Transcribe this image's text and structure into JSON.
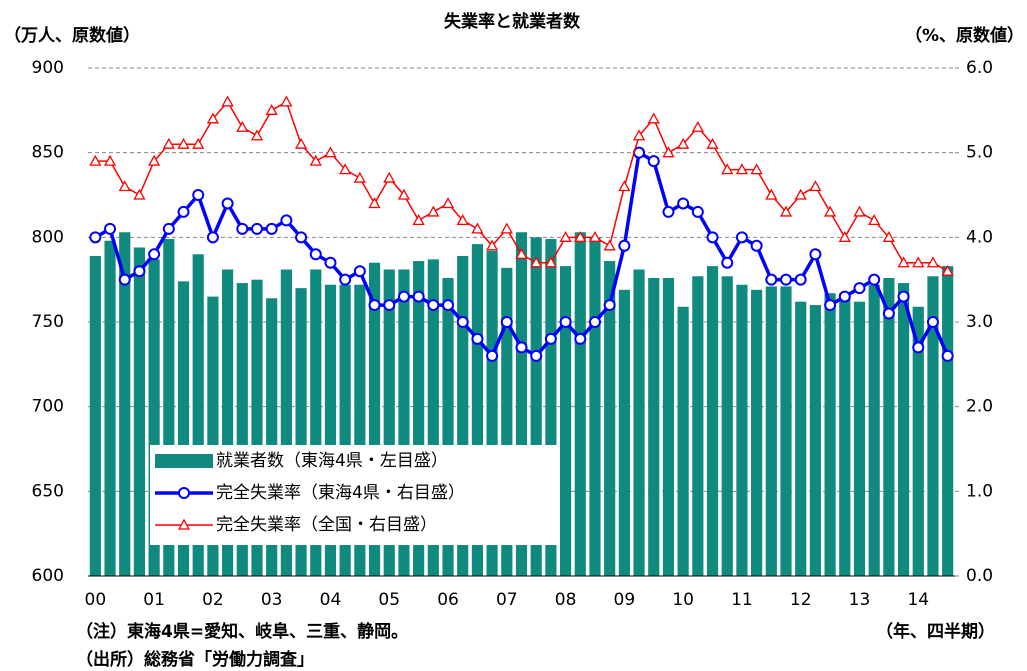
{
  "chart_data": {
    "type": "combo",
    "title": "失業率と就業者数",
    "y_label": "（万人、原数値）",
    "y2_label": "（%、原数値）",
    "x_label": "（年、四半期）",
    "notes": [
      "（注）東海4県=愛知、岐阜、三重、静岡。",
      "（出所）総務省「労働力調査」"
    ],
    "categories": [
      "00",
      null,
      null,
      null,
      "01",
      null,
      null,
      null,
      "02",
      null,
      null,
      null,
      "03",
      null,
      null,
      null,
      "04",
      null,
      null,
      null,
      "05",
      null,
      null,
      null,
      "06",
      null,
      null,
      null,
      "07",
      null,
      null,
      null,
      "08",
      null,
      null,
      null,
      "09",
      null,
      null,
      null,
      "10",
      null,
      null,
      null,
      "11",
      null,
      null,
      null,
      "12",
      null,
      null,
      null,
      "13",
      null,
      null,
      null,
      "14",
      null,
      null
    ],
    "ylim": [
      600,
      900
    ],
    "yticks": [
      600,
      650,
      700,
      750,
      800,
      850,
      900
    ],
    "y2lim": [
      0,
      6
    ],
    "y2ticks": [
      {
        "value": 0,
        "label": "0.0"
      },
      {
        "value": 1,
        "label": "1.0"
      },
      {
        "value": 2,
        "label": "2.0"
      },
      {
        "value": 3,
        "label": "3.0"
      },
      {
        "value": 4,
        "label": "4.0"
      },
      {
        "value": 5,
        "label": "5.0"
      },
      {
        "value": 6,
        "label": "6.0"
      }
    ],
    "grid": true,
    "legend": "lower left",
    "series": [
      {
        "name": "就業者数（東海4県・左目盛）",
        "type": "bar",
        "color": "#10897f",
        "values": [
          789,
          798,
          803,
          794,
          787,
          799,
          774,
          790,
          765,
          781,
          773,
          775,
          764,
          781,
          770,
          781,
          772,
          772,
          772,
          785,
          781,
          781,
          786,
          787,
          776,
          789,
          796,
          792,
          782,
          803,
          800,
          799,
          783,
          803,
          800,
          786,
          769,
          781,
          776,
          776,
          759,
          777,
          783,
          777,
          772,
          769,
          771,
          771,
          762,
          760,
          767,
          767,
          762,
          772,
          776,
          773,
          759,
          777,
          783
        ]
      },
      {
        "name": "完全失業率（東海4県・右目盛）",
        "type": "line",
        "axis": "y2",
        "color": "#0000ff",
        "marker": "circle",
        "values": [
          4.0,
          4.1,
          3.5,
          3.6,
          3.8,
          4.1,
          4.3,
          4.5,
          4.0,
          4.4,
          4.1,
          4.1,
          4.1,
          4.2,
          4.0,
          3.8,
          3.7,
          3.5,
          3.6,
          3.2,
          3.2,
          3.3,
          3.3,
          3.2,
          3.2,
          3.0,
          2.8,
          2.6,
          3.0,
          2.7,
          2.6,
          2.8,
          3.0,
          2.8,
          3.0,
          3.2,
          3.9,
          5.0,
          4.9,
          4.3,
          4.4,
          4.3,
          4.0,
          3.7,
          4.0,
          3.9,
          3.5,
          3.5,
          3.5,
          3.8,
          3.2,
          3.3,
          3.4,
          3.5,
          3.1,
          3.3,
          2.7,
          3.0,
          2.6
        ]
      },
      {
        "name": "完全失業率（全国・右目盛）",
        "type": "line",
        "axis": "y2",
        "color": "#ff0000",
        "marker": "triangle",
        "values": [
          4.9,
          4.9,
          4.6,
          4.5,
          4.9,
          5.1,
          5.1,
          5.1,
          5.4,
          5.6,
          5.3,
          5.2,
          5.5,
          5.6,
          5.1,
          4.9,
          5.0,
          4.8,
          4.7,
          4.4,
          4.7,
          4.5,
          4.2,
          4.3,
          4.4,
          4.2,
          4.1,
          3.9,
          4.1,
          3.8,
          3.7,
          3.7,
          4.0,
          4.0,
          4.0,
          3.9,
          4.6,
          5.2,
          5.4,
          5.0,
          5.1,
          5.3,
          5.1,
          4.8,
          4.8,
          4.8,
          4.5,
          4.3,
          4.5,
          4.6,
          4.3,
          4.0,
          4.3,
          4.2,
          4.0,
          3.7,
          3.7,
          3.7,
          3.6
        ]
      }
    ]
  }
}
